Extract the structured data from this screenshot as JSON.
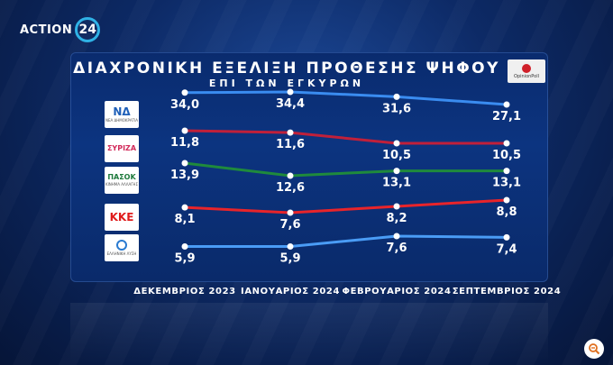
{
  "brand": {
    "name": "ACTION",
    "number": "24"
  },
  "pollster": {
    "name": "OpinionPoll"
  },
  "parties": [
    {
      "label": "ΝΔ",
      "sub": "ΝΕΑ ΔΗΜΟΚΡΑΤΙΑ",
      "text_color": "#1e5fb8",
      "logo_icon": "nd-logo-icon"
    },
    {
      "label": "ΣΥΡΙΖΑ",
      "sub": "",
      "text_color": "#d22b5a",
      "logo_icon": "syriza-logo-icon"
    },
    {
      "label": "ΠΑΣΟΚ",
      "sub": "ΚΙΝΗΜΑ ΑΛΛΑΓΗΣ",
      "text_color": "#1e7a3c",
      "logo_icon": "pasok-logo-icon"
    },
    {
      "label": "ΚΚΕ",
      "sub": "",
      "text_color": "#e01c1c",
      "logo_icon": "kke-logo-icon"
    },
    {
      "label": "",
      "sub": "ΕΛΛΗΝΙΚΗ ΛΥΣΗ",
      "text_color": "#2a7bd1",
      "logo_icon": "elliniki-lysi-logo-icon"
    }
  ],
  "chart_data": {
    "type": "line",
    "title": "ΔΙΑΧΡΟΝΙΚΗ ΕΞΕΛΙΞΗ ΠΡΟΘΕΣΗΣ ΨΗΦΟΥ",
    "subtitle": "ΕΠΙ ΤΩΝ ΕΓΚΥΡΩΝ",
    "categories": [
      "ΔΕΚΕΜΒΡΙΟΣ 2023",
      "ΙΑΝΟΥΑΡΙΟΣ 2024",
      "ΦΕΒΡΟΥΑΡΙΟΣ 2024",
      "ΣΕΠΤΕΜΒΡΙΟΣ 2024"
    ],
    "series": [
      {
        "values": [
          34.0,
          34.4,
          31.6,
          27.1
        ],
        "labels": [
          "34,0",
          "34,4",
          "31,6",
          "27,1"
        ],
        "color": "#3a8cf0"
      },
      {
        "values": [
          11.8,
          11.6,
          10.5,
          10.5
        ],
        "labels": [
          "11,8",
          "11,6",
          "10,5",
          "10,5"
        ],
        "color": "#c0203a"
      },
      {
        "values": [
          13.9,
          12.6,
          13.1,
          13.1
        ],
        "labels": [
          "13,9",
          "12,6",
          "13,1",
          "13,1"
        ],
        "color": "#1f8a3c"
      },
      {
        "values": [
          8.1,
          7.6,
          8.2,
          8.8
        ],
        "labels": [
          "8,1",
          "7,6",
          "8,2",
          "8,8"
        ],
        "color": "#e8242a"
      },
      {
        "values": [
          5.9,
          5.9,
          7.6,
          7.4
        ],
        "labels": [
          "5,9",
          "5,9",
          "7,6",
          "7,4"
        ],
        "color": "#4a9cf5"
      }
    ],
    "grid": false,
    "legend": "left"
  }
}
